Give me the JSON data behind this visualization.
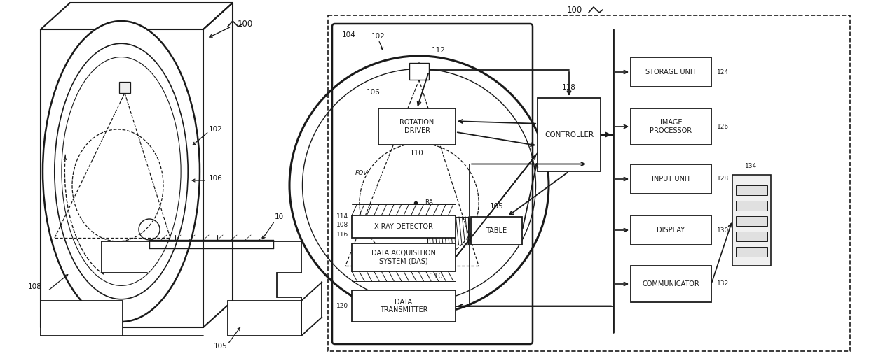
{
  "bg_color": "#ffffff",
  "lc": "#1a1a1a",
  "fs": 7.5,
  "fig_w": 12.4,
  "fig_h": 5.19,
  "left": {
    "label_100": "100",
    "label_102": "102",
    "label_106": "106",
    "label_108": "108",
    "label_10": "10",
    "label_105": "105"
  },
  "right": {
    "label_100": "100",
    "label_102": "102",
    "label_104": "104",
    "label_106": "106",
    "label_110": "110",
    "label_112": "112",
    "label_114": "114",
    "label_108": "108",
    "label_116": "116",
    "label_118": "118",
    "label_120": "120",
    "label_105": "105",
    "label_124": "124",
    "label_126": "126",
    "label_128": "128",
    "label_130": "130",
    "label_132": "132",
    "label_134": "134",
    "label_FOV": "FOV",
    "label_RA": "RA"
  }
}
